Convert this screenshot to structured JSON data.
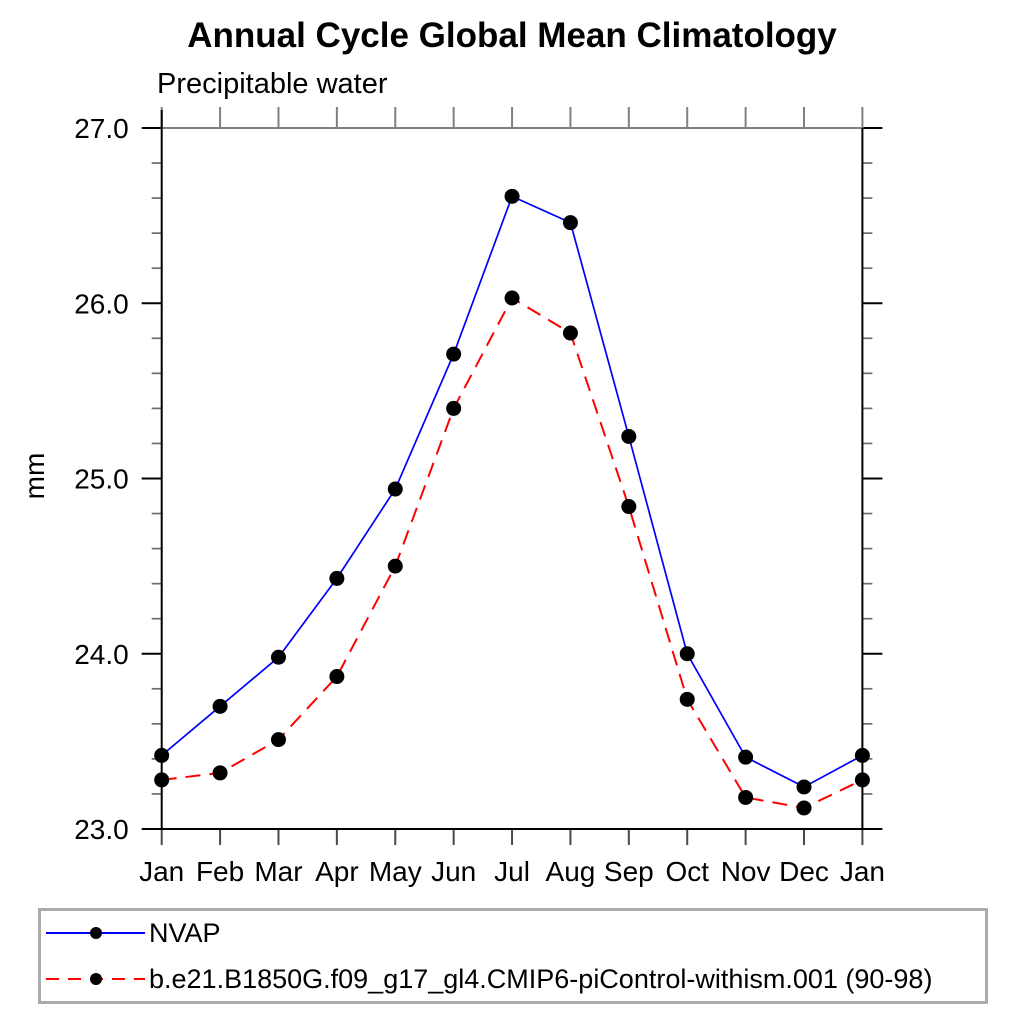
{
  "chart_data": {
    "type": "line",
    "title": "Annual Cycle Global Mean Climatology",
    "subtitle": "Precipitable water",
    "ylabel": "mm",
    "xlabel": "",
    "categories": [
      "Jan",
      "Feb",
      "Mar",
      "Apr",
      "May",
      "Jun",
      "Jul",
      "Aug",
      "Sep",
      "Oct",
      "Nov",
      "Dec",
      "Jan"
    ],
    "series": [
      {
        "name": "NVAP",
        "color": "#0000ff",
        "line_style": "solid",
        "marker": "filled-circle",
        "marker_color": "#000000",
        "values": [
          23.42,
          23.7,
          23.98,
          24.43,
          24.94,
          25.71,
          26.61,
          26.46,
          25.24,
          24.0,
          23.41,
          23.24,
          23.42
        ]
      },
      {
        "name": "b.e21.B1850G.f09_g17_gl4.CMIP6-piControl-withism.001 (90-98)",
        "color": "#ff0000",
        "line_style": "dashed",
        "marker": "filled-circle",
        "marker_color": "#000000",
        "values": [
          23.28,
          23.32,
          23.51,
          23.87,
          24.5,
          25.4,
          26.03,
          25.83,
          24.84,
          23.74,
          23.18,
          23.12,
          23.28
        ]
      }
    ],
    "ylim": [
      23.0,
      27.0
    ],
    "yticks_major": [
      23.0,
      24.0,
      25.0,
      26.0,
      27.0
    ],
    "ytick_minor_step": 0.2,
    "ytick_label_format": "one-decimal",
    "grid": false,
    "legend_position": "bottom-left-box",
    "frame_color": "#000000",
    "top_frame_color": "#808080",
    "legend_border_color": "#ababab"
  }
}
